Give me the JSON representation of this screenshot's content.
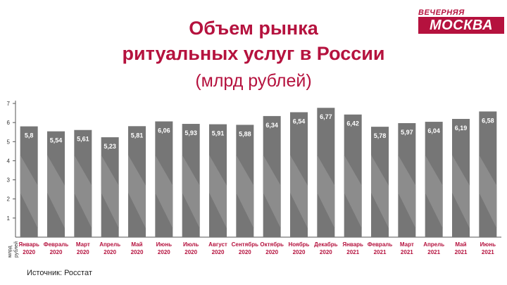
{
  "title_lines": [
    "Объем рынка",
    "ритуальных услуг в России"
  ],
  "subtitle": "(млрд рублей)",
  "logo": {
    "top": "ВЕЧЕРНЯЯ",
    "bottom": "МОСКВА"
  },
  "source": "Источник: Росстат",
  "colors": {
    "accent": "#b5123e",
    "bar": "#767676",
    "bar_stripe": "#8f8f8f",
    "axis": "#555555",
    "grid": "#cccccc"
  },
  "chart_data": {
    "type": "bar",
    "ylabel": "млрд рублей",
    "ylim": [
      0,
      7
    ],
    "yticks": [
      1,
      2,
      3,
      4,
      5,
      6,
      7
    ],
    "grid": false,
    "categories": [
      [
        "Январь",
        "2020"
      ],
      [
        "Февраль",
        "2020"
      ],
      [
        "Март",
        "2020"
      ],
      [
        "Апрель",
        "2020"
      ],
      [
        "Май",
        "2020"
      ],
      [
        "Июнь",
        "2020"
      ],
      [
        "Июль",
        "2020"
      ],
      [
        "Август",
        "2020"
      ],
      [
        "Сентябрь",
        "2020"
      ],
      [
        "Октябрь",
        "2020"
      ],
      [
        "Ноябрь",
        "2020"
      ],
      [
        "Декабрь",
        "2020"
      ],
      [
        "Январь",
        "2021"
      ],
      [
        "Февраль",
        "2021"
      ],
      [
        "Март",
        "2021"
      ],
      [
        "Апрель",
        "2021"
      ],
      [
        "Май",
        "2021"
      ],
      [
        "Июнь",
        "2021"
      ]
    ],
    "values": [
      5.8,
      5.54,
      5.61,
      5.23,
      5.81,
      6.06,
      5.93,
      5.91,
      5.88,
      6.34,
      6.54,
      6.77,
      6.42,
      5.78,
      5.97,
      6.04,
      6.19,
      6.58
    ],
    "value_labels": [
      "5,8",
      "5,54",
      "5,61",
      "5,23",
      "5,81",
      "6,06",
      "5,93",
      "5,91",
      "5,88",
      "6,34",
      "6,54",
      "6,77",
      "6,42",
      "5,78",
      "5,97",
      "6,04",
      "6,19",
      "6,58"
    ]
  }
}
